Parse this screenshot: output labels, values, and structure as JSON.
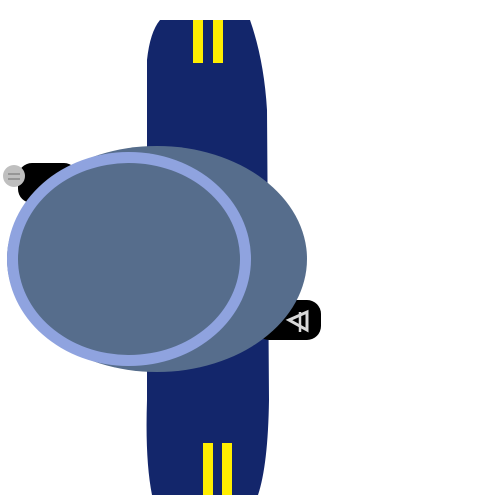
{
  "scene": {
    "background": "#ffffff",
    "pieces": {
      "board": {
        "icon": "snowboard",
        "color": "#13266b",
        "stripe_color": "#ffee00"
      },
      "binding_strap_left": {
        "icon": "binding-strap",
        "color": "#000000",
        "buckle_color": "#bfbfbf"
      },
      "binding_strap_right": {
        "icon": "binding-strap",
        "color": "#000000",
        "buckle_color": "#d9d9d9"
      },
      "rider_body": {
        "icon": "rider-body",
        "color": "#566d8c"
      },
      "rider_helmet": {
        "icon": "rider-helmet",
        "color": "#566d8c",
        "rim_color": "#8fa3df"
      }
    }
  }
}
